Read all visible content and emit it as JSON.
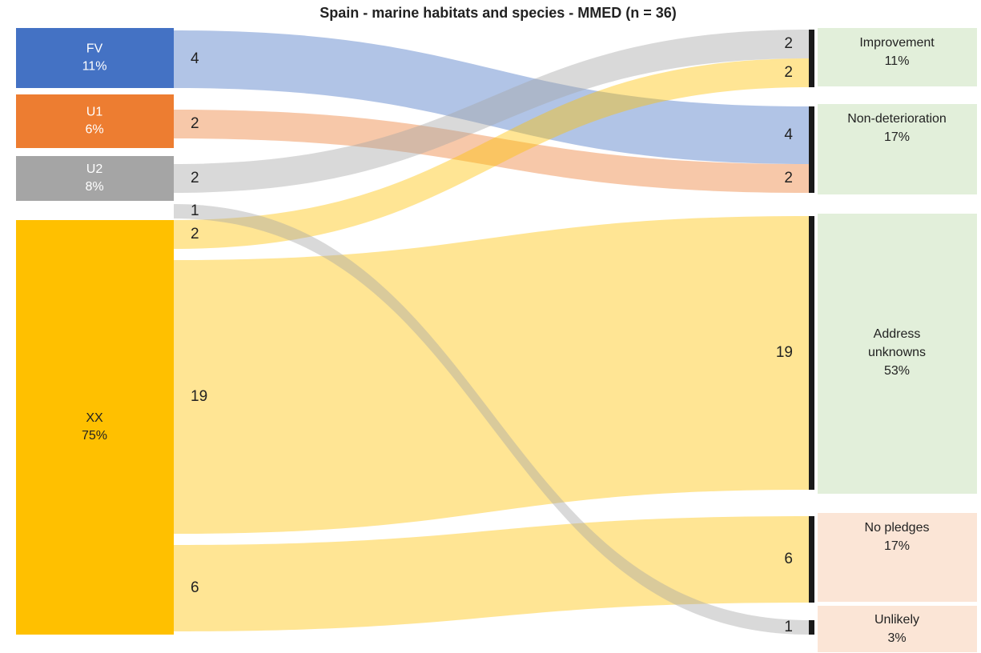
{
  "chart_data": {
    "type": "sankey",
    "title": "Spain - marine habitats and species - MMED (n = 36)",
    "sources": [
      {
        "name": "FV",
        "share": "11%",
        "color": "#4472c4"
      },
      {
        "name": "U1",
        "share": "6%",
        "color": "#ed7d31"
      },
      {
        "name": "U2",
        "share": "8%",
        "color": "#a5a5a5"
      },
      {
        "name": "XX",
        "share": "75%",
        "color": "#ffc000"
      }
    ],
    "targets": [
      {
        "name": "Improvement",
        "share": "11%",
        "color": "#e2efda"
      },
      {
        "name": "Non-deterioration",
        "share": "17%",
        "color": "#e2efda"
      },
      {
        "name": "Address unknowns",
        "share": "53%",
        "color": "#e2efda"
      },
      {
        "name": "No pledges",
        "share": "17%",
        "color": "#fbe5d6"
      },
      {
        "name": "Unlikely",
        "share": "3%",
        "color": "#fbe5d6"
      }
    ],
    "links": [
      {
        "source": 0,
        "target": 1,
        "value": 4
      },
      {
        "source": 1,
        "target": 1,
        "value": 2
      },
      {
        "source": 2,
        "target": 0,
        "value": 2
      },
      {
        "source": 2,
        "target": 4,
        "value": 1
      },
      {
        "source": 3,
        "target": 0,
        "value": 2
      },
      {
        "source": 3,
        "target": 2,
        "value": 19
      },
      {
        "source": 3,
        "target": 3,
        "value": 6
      }
    ]
  }
}
